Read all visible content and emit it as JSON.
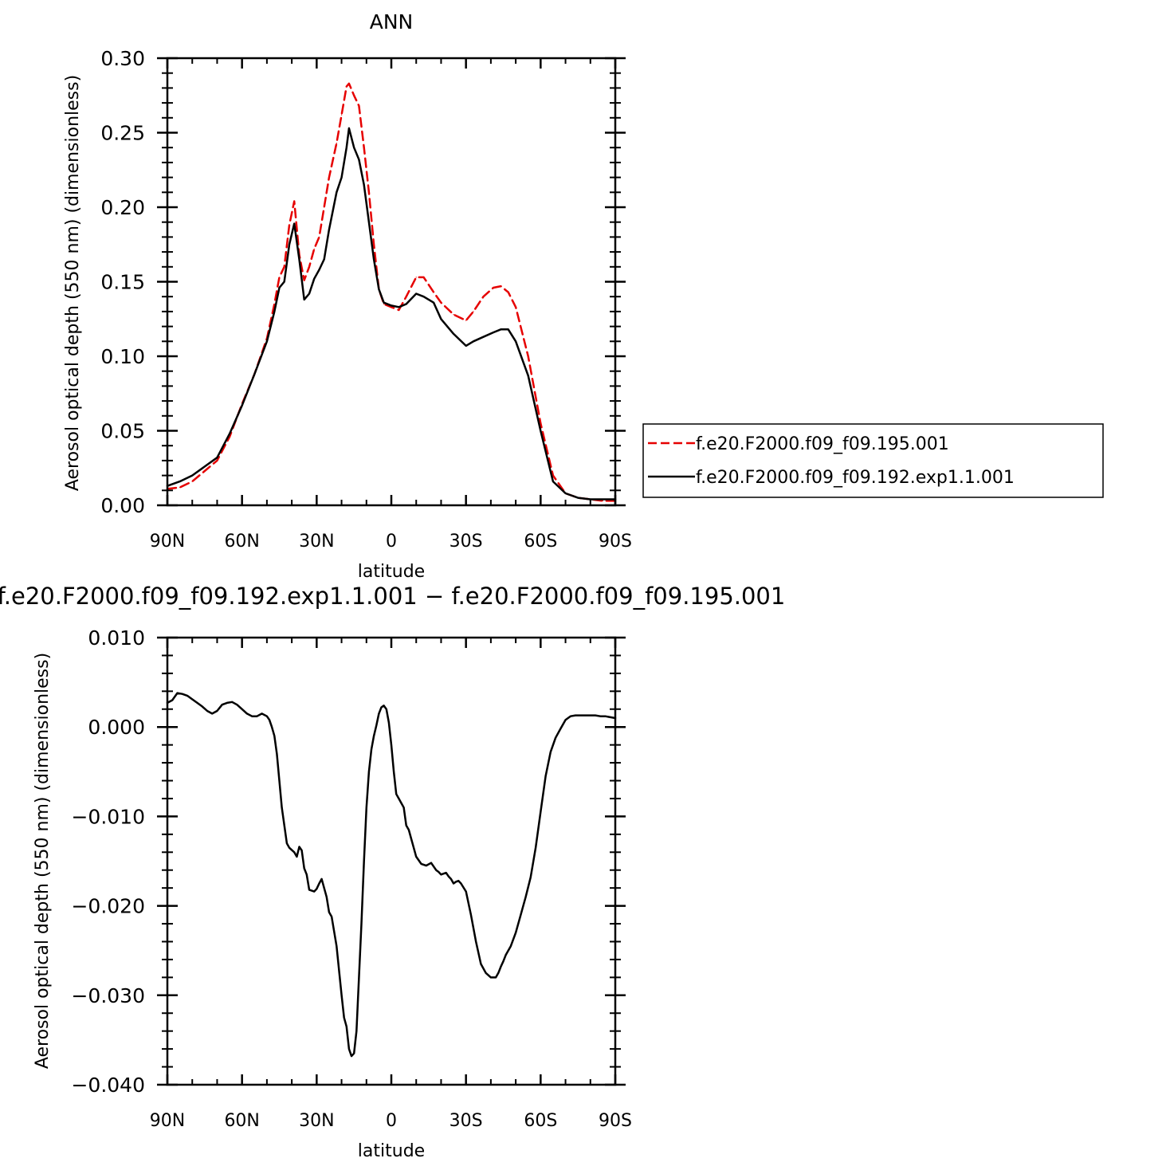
{
  "chart_data": [
    {
      "type": "line",
      "title": "ANN",
      "xlabel": "latitude",
      "ylabel": "Aerosol optical depth (550 nm) (dimensionless)",
      "xlim": [
        90,
        -90
      ],
      "ylim": [
        0,
        0.3
      ],
      "xticks": [
        {
          "value": 90,
          "label": "90N"
        },
        {
          "value": 60,
          "label": "60N"
        },
        {
          "value": 30,
          "label": "30N"
        },
        {
          "value": 0,
          "label": "0"
        },
        {
          "value": -30,
          "label": "30S"
        },
        {
          "value": -60,
          "label": "60S"
        },
        {
          "value": -90,
          "label": "90S"
        }
      ],
      "yticks": [
        {
          "value": 0.0,
          "label": "0.00"
        },
        {
          "value": 0.05,
          "label": "0.05"
        },
        {
          "value": 0.1,
          "label": "0.10"
        },
        {
          "value": 0.15,
          "label": "0.15"
        },
        {
          "value": 0.2,
          "label": "0.20"
        },
        {
          "value": 0.25,
          "label": "0.25"
        },
        {
          "value": 0.3,
          "label": "0.30"
        }
      ],
      "grid": false,
      "legend_position": "right",
      "series": [
        {
          "name": "f.e20.F2000.f09_f09.195.001",
          "color": "#e60000",
          "dash": "dashed",
          "x": [
            90,
            85,
            80,
            75,
            70,
            65,
            60,
            55,
            50,
            47,
            45,
            43,
            41,
            39,
            37,
            35,
            33,
            31,
            29,
            27,
            25,
            22,
            20,
            18,
            17,
            15,
            13,
            11,
            9,
            7,
            5,
            3,
            0,
            -3,
            -6,
            -10,
            -13,
            -17,
            -20,
            -25,
            -30,
            -33,
            -37,
            -41,
            -44,
            -47,
            -50,
            -55,
            -60,
            -65,
            -70,
            -75,
            -80,
            -85,
            -90
          ],
          "y": [
            0.011,
            0.012,
            0.016,
            0.023,
            0.03,
            0.046,
            0.068,
            0.088,
            0.112,
            0.135,
            0.153,
            0.16,
            0.188,
            0.204,
            0.168,
            0.151,
            0.16,
            0.172,
            0.18,
            0.2,
            0.22,
            0.243,
            0.262,
            0.281,
            0.283,
            0.275,
            0.268,
            0.24,
            0.21,
            0.175,
            0.145,
            0.135,
            0.133,
            0.131,
            0.14,
            0.153,
            0.153,
            0.143,
            0.136,
            0.128,
            0.124,
            0.13,
            0.14,
            0.146,
            0.147,
            0.143,
            0.133,
            0.1,
            0.055,
            0.02,
            0.008,
            0.005,
            0.004,
            0.003,
            0.003
          ]
        },
        {
          "name": "f.e20.F2000.f09_f09.192.exp1.1.001",
          "color": "#000000",
          "dash": "solid",
          "x": [
            90,
            85,
            80,
            75,
            70,
            65,
            60,
            55,
            50,
            47,
            45,
            43,
            41,
            39,
            37,
            35,
            33,
            31,
            29,
            27,
            25,
            22,
            20,
            18,
            17,
            15,
            13,
            11,
            9,
            7,
            5,
            3,
            0,
            -3,
            -6,
            -10,
            -13,
            -17,
            -20,
            -25,
            -30,
            -33,
            -37,
            -41,
            -44,
            -47,
            -50,
            -55,
            -60,
            -65,
            -70,
            -75,
            -80,
            -85,
            -90
          ],
          "y": [
            0.013,
            0.016,
            0.02,
            0.026,
            0.032,
            0.048,
            0.067,
            0.088,
            0.11,
            0.13,
            0.146,
            0.15,
            0.175,
            0.189,
            0.165,
            0.138,
            0.142,
            0.152,
            0.158,
            0.165,
            0.185,
            0.21,
            0.22,
            0.24,
            0.253,
            0.24,
            0.232,
            0.215,
            0.19,
            0.165,
            0.145,
            0.136,
            0.134,
            0.133,
            0.135,
            0.142,
            0.14,
            0.136,
            0.125,
            0.115,
            0.107,
            0.11,
            0.113,
            0.116,
            0.118,
            0.118,
            0.11,
            0.087,
            0.05,
            0.016,
            0.008,
            0.005,
            0.004,
            0.004,
            0.004
          ]
        }
      ]
    },
    {
      "type": "line",
      "title": "f.e20.F2000.f09_f09.192.exp1.1.001 − f.e20.F2000.f09_f09.195.001",
      "xlabel": "latitude",
      "ylabel": "Aerosol optical depth (550 nm) (dimensionless)",
      "xlim": [
        90,
        -90
      ],
      "ylim": [
        -0.04,
        0.01
      ],
      "xticks": [
        {
          "value": 90,
          "label": "90N"
        },
        {
          "value": 60,
          "label": "60N"
        },
        {
          "value": 30,
          "label": "30N"
        },
        {
          "value": 0,
          "label": "0"
        },
        {
          "value": -30,
          "label": "30S"
        },
        {
          "value": -60,
          "label": "60S"
        },
        {
          "value": -90,
          "label": "90S"
        }
      ],
      "yticks": [
        {
          "value": 0.01,
          "label": "0.010"
        },
        {
          "value": 0.0,
          "label": "0.000"
        },
        {
          "value": -0.01,
          "label": "−0.010"
        },
        {
          "value": -0.02,
          "label": "−0.020"
        },
        {
          "value": -0.03,
          "label": "−0.030"
        },
        {
          "value": -0.04,
          "label": "−0.040"
        }
      ],
      "grid": false,
      "series": [
        {
          "color": "#000000",
          "dash": "solid",
          "x": [
            90,
            88,
            86,
            84,
            82,
            80,
            78,
            76,
            74,
            72,
            70,
            68,
            66,
            64,
            62,
            60,
            58,
            56,
            54,
            52,
            50,
            49,
            48,
            47,
            46,
            45,
            44,
            42,
            41,
            39,
            38,
            37,
            36,
            35,
            34,
            33,
            31,
            30,
            29,
            28,
            26,
            25,
            24,
            22,
            20,
            19,
            18,
            17,
            16,
            15,
            14,
            13,
            12,
            11,
            10,
            9,
            8,
            7,
            6,
            5,
            4,
            3,
            2,
            1,
            0,
            -1,
            -2,
            -3,
            -4,
            -5,
            -6,
            -7,
            -8,
            -9,
            -10,
            -12,
            -14,
            -16,
            -18,
            -19,
            -20,
            -22,
            -23,
            -24,
            -25,
            -26,
            -27,
            -28,
            -30,
            -32,
            -34,
            -36,
            -38,
            -40,
            -42,
            -43,
            -44,
            -45,
            -46,
            -48,
            -50,
            -52,
            -54,
            -56,
            -58,
            -60,
            -62,
            -64,
            -66,
            -68,
            -70,
            -72,
            -74,
            -76,
            -78,
            -80,
            -82,
            -84,
            -86,
            -88,
            -90
          ],
          "y": [
            0.0027,
            0.003,
            0.0038,
            0.0037,
            0.0035,
            0.0031,
            0.0027,
            0.0023,
            0.0018,
            0.0015,
            0.0018,
            0.0025,
            0.0027,
            0.0028,
            0.0025,
            0.002,
            0.0015,
            0.0012,
            0.0012,
            0.0015,
            0.0012,
            0.0008,
            0.0,
            -0.001,
            -0.003,
            -0.006,
            -0.009,
            -0.013,
            -0.0135,
            -0.014,
            -0.0145,
            -0.0134,
            -0.0138,
            -0.0158,
            -0.0165,
            -0.0182,
            -0.0184,
            -0.0181,
            -0.0175,
            -0.017,
            -0.019,
            -0.0207,
            -0.0212,
            -0.0245,
            -0.03,
            -0.0325,
            -0.0335,
            -0.036,
            -0.0368,
            -0.0365,
            -0.034,
            -0.028,
            -0.022,
            -0.015,
            -0.009,
            -0.005,
            -0.0025,
            -0.001,
            0.0002,
            0.0015,
            0.0022,
            0.0024,
            0.002,
            0.0005,
            -0.002,
            -0.005,
            -0.0075,
            -0.008,
            -0.0085,
            -0.009,
            -0.011,
            -0.0115,
            -0.0125,
            -0.0135,
            -0.0145,
            -0.0153,
            -0.0155,
            -0.0152,
            -0.016,
            -0.0162,
            -0.0165,
            -0.0163,
            -0.0167,
            -0.017,
            -0.0175,
            -0.0173,
            -0.0172,
            -0.0175,
            -0.0184,
            -0.021,
            -0.024,
            -0.0265,
            -0.0275,
            -0.028,
            -0.028,
            -0.0275,
            -0.0268,
            -0.0262,
            -0.0255,
            -0.0245,
            -0.023,
            -0.021,
            -0.019,
            -0.0168,
            -0.0135,
            -0.0095,
            -0.0055,
            -0.0028,
            -0.0012,
            -0.0002,
            0.0008,
            0.0012,
            0.0013,
            0.0013,
            0.0013,
            0.0013,
            0.0013,
            0.0012,
            0.0012,
            0.0011,
            0.001
          ]
        }
      ]
    }
  ]
}
